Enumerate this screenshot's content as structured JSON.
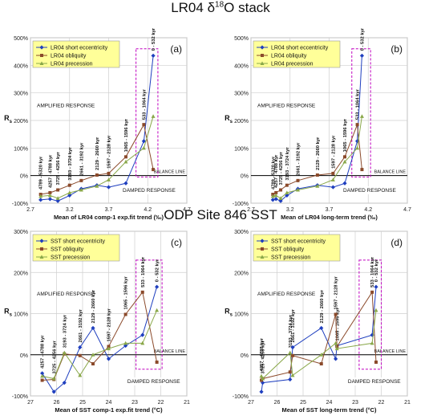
{
  "page": {
    "title_top": "LR04 δ18O stack",
    "title_bottom": "ODP Site 846 SST"
  },
  "colors": {
    "eccentricity": "#1f3fbf",
    "obliquity": "#8b4a2b",
    "precession": "#8aa84a",
    "box": "#c000c0",
    "legend_bg": "#ffff99",
    "balance": "#000000"
  },
  "chart_data": [
    {
      "id": "a",
      "type": "line",
      "panel_label": "(a)",
      "xlabel": "Mean of LR04 comp-1 exp.fit trend (‰)",
      "ylabel": "Rs",
      "xlim": [
        2.7,
        4.7
      ],
      "ylim": [
        -100,
        500
      ],
      "x_ticks": [
        "2.7",
        "3.2",
        "3.7",
        "4.2",
        "4.7"
      ],
      "y_ticks": [
        "-100%",
        "0%",
        "100%",
        "200%",
        "300%",
        "400%",
        "500%"
      ],
      "grid": true,
      "legend_position": "top-left",
      "annotations": [
        "AMPLIFIED RESPONSE",
        "DAMPED RESPONSE",
        "BALANCE LINE"
      ],
      "interval_labels": [
        "4789 - 5320 kyr",
        "4257 - 4788 kyr",
        "3725 - 4256 kyr",
        "3193 - 3724 kyr",
        "2661 - 3192 kyr",
        "2129 - 2660 kyr",
        "1597 - 2128 kyr",
        "1065 - 1596 kyr",
        "533 - 1064 kyr",
        "0 - 532 kyr"
      ],
      "series": [
        {
          "name": "LR04 short eccentricity",
          "x": [
            2.83,
            2.95,
            3.05,
            3.2,
            3.35,
            3.55,
            3.7,
            3.92,
            4.15,
            4.27
          ],
          "y": [
            -88,
            -85,
            -92,
            -72,
            -48,
            -35,
            -42,
            -28,
            125,
            435
          ]
        },
        {
          "name": "LR04 obliquity",
          "x": [
            2.83,
            2.95,
            3.05,
            3.2,
            3.35,
            3.55,
            3.7,
            3.92,
            4.15,
            4.27
          ],
          "y": [
            -68,
            -62,
            -52,
            -35,
            -18,
            2,
            8,
            68,
            185,
            22
          ]
        },
        {
          "name": "LR04 precession",
          "x": [
            2.83,
            2.95,
            3.05,
            3.2,
            3.35,
            3.55,
            3.7,
            3.92,
            4.15,
            4.27
          ],
          "y": [
            -75,
            -72,
            -82,
            -62,
            -52,
            -38,
            -15,
            50,
            100,
            215
          ]
        }
      ]
    },
    {
      "id": "b",
      "type": "line",
      "panel_label": "(b)",
      "xlabel": "Mean of LR04 long-term trend (‰)",
      "ylabel": "Rs",
      "xlim": [
        2.7,
        4.7
      ],
      "ylim": [
        -100,
        500
      ],
      "x_ticks": [
        "2.7",
        "3.2",
        "3.7",
        "4.2",
        "4.7"
      ],
      "y_ticks": [
        "-100%",
        "0%",
        "100%",
        "200%",
        "300%",
        "400%",
        "500%"
      ],
      "grid": true,
      "legend_position": "top-left",
      "annotations": [
        "AMPLIFIED RESPONSE",
        "DAMPED RESPONSE",
        "BALANCE LINE"
      ],
      "interval_labels": [
        "4789 - 5320 kyr",
        "4257 - 4788 kyr",
        "3725 - 4256 kyr",
        "3193 - 3724 kyr",
        "2661 - 3192 kyr",
        "2129 - 2660 kyr",
        "1597 - 2128 kyr",
        "1065 - 1596 kyr",
        "533 - 1064 kyr",
        "0 - 532 kyr"
      ],
      "series": [
        {
          "name": "LR04 short eccentricity",
          "x": [
            2.98,
            3.02,
            3.08,
            3.16,
            3.3,
            3.55,
            3.75,
            3.9,
            4.06,
            4.12
          ],
          "y": [
            -88,
            -85,
            -92,
            -72,
            -48,
            -35,
            -42,
            -28,
            125,
            435
          ]
        },
        {
          "name": "LR04 obliquity",
          "x": [
            2.98,
            3.02,
            3.08,
            3.16,
            3.3,
            3.55,
            3.75,
            3.9,
            4.06,
            4.12
          ],
          "y": [
            -68,
            -62,
            -52,
            -35,
            -18,
            2,
            8,
            68,
            185,
            22
          ]
        },
        {
          "name": "LR04 precession",
          "x": [
            2.98,
            3.02,
            3.08,
            3.16,
            3.3,
            3.55,
            3.75,
            3.9,
            4.06,
            4.12
          ],
          "y": [
            -75,
            -72,
            -82,
            -62,
            -52,
            -38,
            -15,
            50,
            100,
            215
          ]
        }
      ]
    },
    {
      "id": "c",
      "type": "line",
      "panel_label": "(c)",
      "xlabel": "Mean of SST comp-1 exp.fit trend (°C)",
      "ylabel": "Rs",
      "xlim": [
        27,
        21
      ],
      "ylim": [
        -100,
        300
      ],
      "x_ticks": [
        "27",
        "26",
        "25",
        "24",
        "23",
        "22",
        "21"
      ],
      "y_ticks": [
        "-100%",
        "0%",
        "100%",
        "200%",
        "300%"
      ],
      "grid": true,
      "legend_position": "top-left",
      "annotations": [
        "AMPLIFIED RESPONSE",
        "DAMPED RESPONSE",
        "BALANCE LINE"
      ],
      "interval_labels": [
        "4257 - 4788 kyr",
        "3725 - 4256 kyr",
        "3193 - 3724 kyr",
        "2661 - 3192 kyr",
        "2129 - 2660 kyr",
        "1597 - 2128 kyr",
        "1065 - 1596 kyr",
        "533 - 1064 kyr",
        "0 - 532 kyr"
      ],
      "series": [
        {
          "name": "SST short eccentricity",
          "x": [
            26.55,
            26.1,
            25.7,
            25.1,
            24.6,
            24.0,
            23.35,
            22.7,
            22.15
          ],
          "y": [
            -45,
            -90,
            -68,
            18,
            65,
            -10,
            22,
            48,
            165
          ]
        },
        {
          "name": "SST obliquity",
          "x": [
            26.55,
            26.1,
            25.7,
            25.1,
            24.6,
            24.0,
            23.35,
            22.7,
            22.15
          ],
          "y": [
            -62,
            -60,
            2,
            -2,
            -22,
            20,
            98,
            152,
            -18
          ]
        },
        {
          "name": "SST precession",
          "x": [
            26.55,
            26.1,
            25.7,
            25.1,
            24.6,
            24.0,
            23.35,
            22.7,
            22.15
          ],
          "y": [
            -52,
            -58,
            5,
            -50,
            0,
            15,
            28,
            28,
            108
          ]
        }
      ]
    },
    {
      "id": "d",
      "type": "line",
      "panel_label": "(d)",
      "xlabel": "Mean of SST long-term trend (°C)",
      "ylabel": "Rs",
      "xlim": [
        27,
        21
      ],
      "ylim": [
        -100,
        300
      ],
      "x_ticks": [
        "27",
        "26",
        "25",
        "24",
        "23",
        "22",
        "21"
      ],
      "y_ticks": [
        "-100%",
        "0%",
        "100%",
        "200%",
        "300%"
      ],
      "grid": true,
      "legend_position": "top-left",
      "annotations": [
        "AMPLIFIED RESPONSE",
        "DAMPED RESPONSE",
        "BALANCE LINE"
      ],
      "interval_labels": [
        "4257 - 4788 kyr",
        "3725 - 4256 kyr",
        "3193 - 3724 kyr",
        "2661 - 3192 kyr",
        "2129 - 2660 kyr",
        "1597 - 2128 kyr",
        "1065 - 1596 kyr",
        "533 - 1064 kyr",
        "0 - 532 kyr"
      ],
      "series": [
        {
          "name": "SST short eccentricity",
          "x": [
            26.6,
            26.55,
            25.5,
            25.4,
            24.3,
            23.75,
            23.7,
            22.35,
            22.2
          ],
          "y": [
            -90,
            -68,
            -60,
            18,
            65,
            -10,
            22,
            48,
            165
          ]
        },
        {
          "name": "SST obliquity",
          "x": [
            26.6,
            26.55,
            25.5,
            25.4,
            24.3,
            23.75,
            23.7,
            22.35,
            22.2
          ],
          "y": [
            -62,
            -58,
            -42,
            -2,
            -22,
            98,
            20,
            152,
            -18
          ]
        },
        {
          "name": "SST precession",
          "x": [
            26.6,
            26.55,
            25.5,
            25.4,
            24.3,
            23.75,
            23.7,
            22.35,
            22.2
          ],
          "y": [
            -52,
            -58,
            5,
            -50,
            0,
            28,
            15,
            28,
            108
          ]
        }
      ]
    }
  ]
}
